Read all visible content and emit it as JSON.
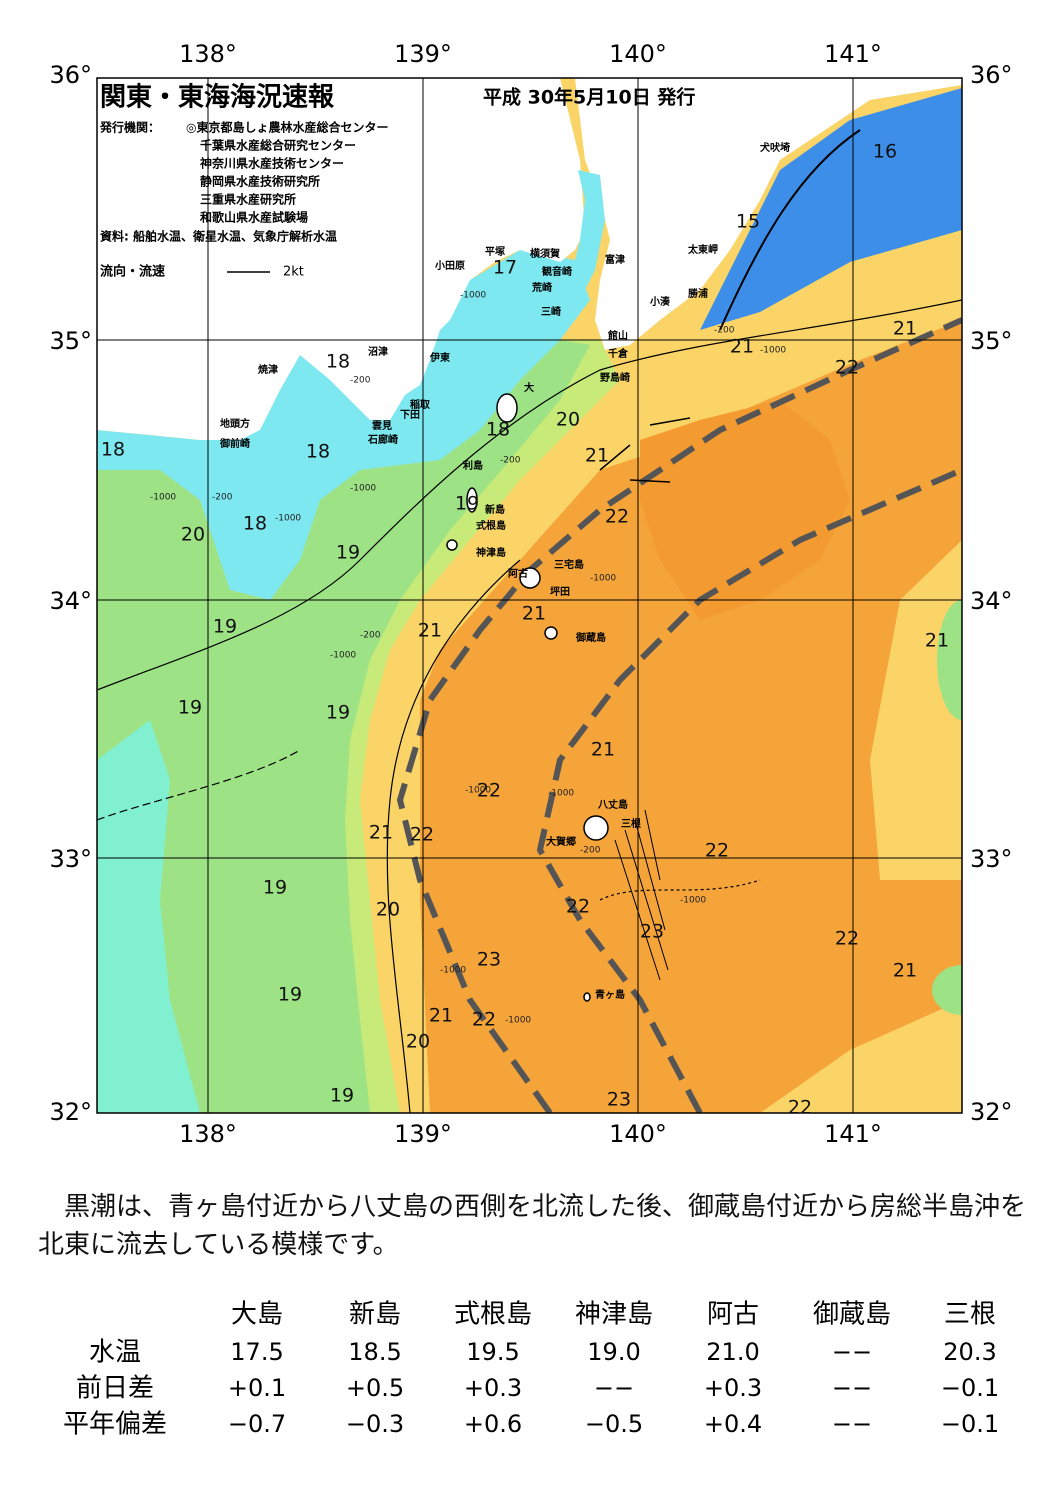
{
  "header": {
    "title": "関東・東海海況速報",
    "date": "平成 30年5月10日 発行",
    "publisher_label": "発行機関：",
    "publishers": [
      "◎東京都島しょ農林水産総合センター",
      "千葉県水産総合研究センター",
      "神奈川県水産技術センター",
      "静岡県水産技術研究所",
      "三重県水産研究所",
      "和歌山県水産試験場"
    ],
    "source": "資料: 船舶水温、衛星水温、気象庁解析水温",
    "flow_label": "流向・流速",
    "flow_scale": "2kt"
  },
  "map": {
    "lon_labels": [
      "138°",
      "139°",
      "140°",
      "141°"
    ],
    "lat_labels": [
      "36°",
      "35°",
      "34°",
      "33°",
      "32°"
    ],
    "temperature_labels": [
      16,
      15,
      17,
      18,
      18,
      18,
      18,
      18,
      19,
      19,
      19,
      19,
      19,
      19,
      19,
      19,
      20,
      20,
      20,
      20,
      21,
      21,
      21,
      21,
      21,
      21,
      21,
      21,
      21,
      21,
      22,
      22,
      22,
      22,
      22,
      22,
      22,
      22,
      22,
      23,
      23,
      23
    ],
    "places": [
      "犬吠埼",
      "太東岬",
      "勝浦",
      "小湊",
      "館山",
      "千倉",
      "野島崎",
      "富津",
      "横須賀",
      "観音崎",
      "荒崎",
      "三崎",
      "平塚",
      "小田原",
      "沼津",
      "伊東",
      "焼津",
      "稲取",
      "下田",
      "雲見",
      "石廊崎",
      "地頭方",
      "御前崎",
      "大",
      "利島",
      "新島",
      "式根島",
      "神津島",
      "阿古",
      "三宅島",
      "坪田",
      "御蔵島",
      "八丈島",
      "三根",
      "大賀郷",
      "青ヶ島"
    ],
    "depth_labels": [
      "-1000",
      "-1000",
      "-1000",
      "-1000",
      "-1000",
      "-1000",
      "-1000",
      "-1000",
      "-1000",
      "-1000",
      "-1000",
      "-1000",
      "-200",
      "-200",
      "-200",
      "-200",
      "-200",
      "-200"
    ]
  },
  "summary": "黒潮は、青ヶ島付近から八丈島の西側を北流した後、御蔵島付近から房総半島沖を北東に流去している模様です。",
  "table": {
    "columns": [
      "大島",
      "新島",
      "式根島",
      "神津島",
      "阿古",
      "御蔵島",
      "三根"
    ],
    "rows": [
      [
        "水温",
        "17.5",
        "18.5",
        "19.5",
        "19.0",
        "21.0",
        "−−",
        "20.3"
      ],
      [
        "前日差",
        "+0.1",
        "+0.5",
        "+0.3",
        "−−",
        "+0.3",
        "−−",
        "−0.1"
      ],
      [
        "平年偏差",
        "−0.7",
        "−0.3",
        "+0.6",
        "−0.5",
        "+0.4",
        "−−",
        "−0.1"
      ]
    ]
  }
}
